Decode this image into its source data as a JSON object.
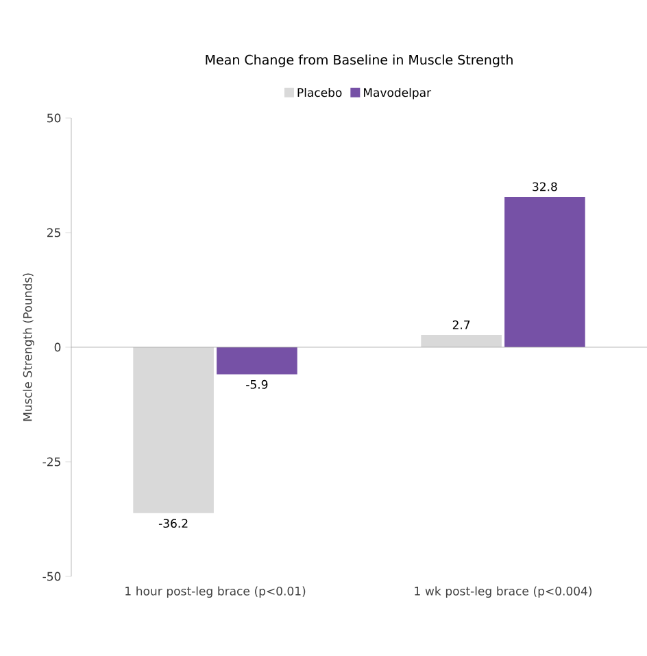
{
  "chart_data": {
    "type": "bar",
    "title": "Mean Change from Baseline in Muscle Strength",
    "ylabel": "Muscle Strength (Pounds)",
    "categories": [
      "1 hour post-leg brace (p<0.01)",
      "1 wk post-leg brace (p<0.004)"
    ],
    "series": [
      {
        "name": "Placebo",
        "color": "#d9d9d9",
        "values": [
          -36.2,
          2.7
        ]
      },
      {
        "name": "Mavodelpar",
        "color": "#7651a6",
        "values": [
          -5.9,
          32.8
        ]
      }
    ],
    "ylim": [
      -50,
      50
    ],
    "yticks": [
      -50,
      -25,
      0,
      25,
      50
    ],
    "data_labels": true,
    "legend": "top"
  }
}
